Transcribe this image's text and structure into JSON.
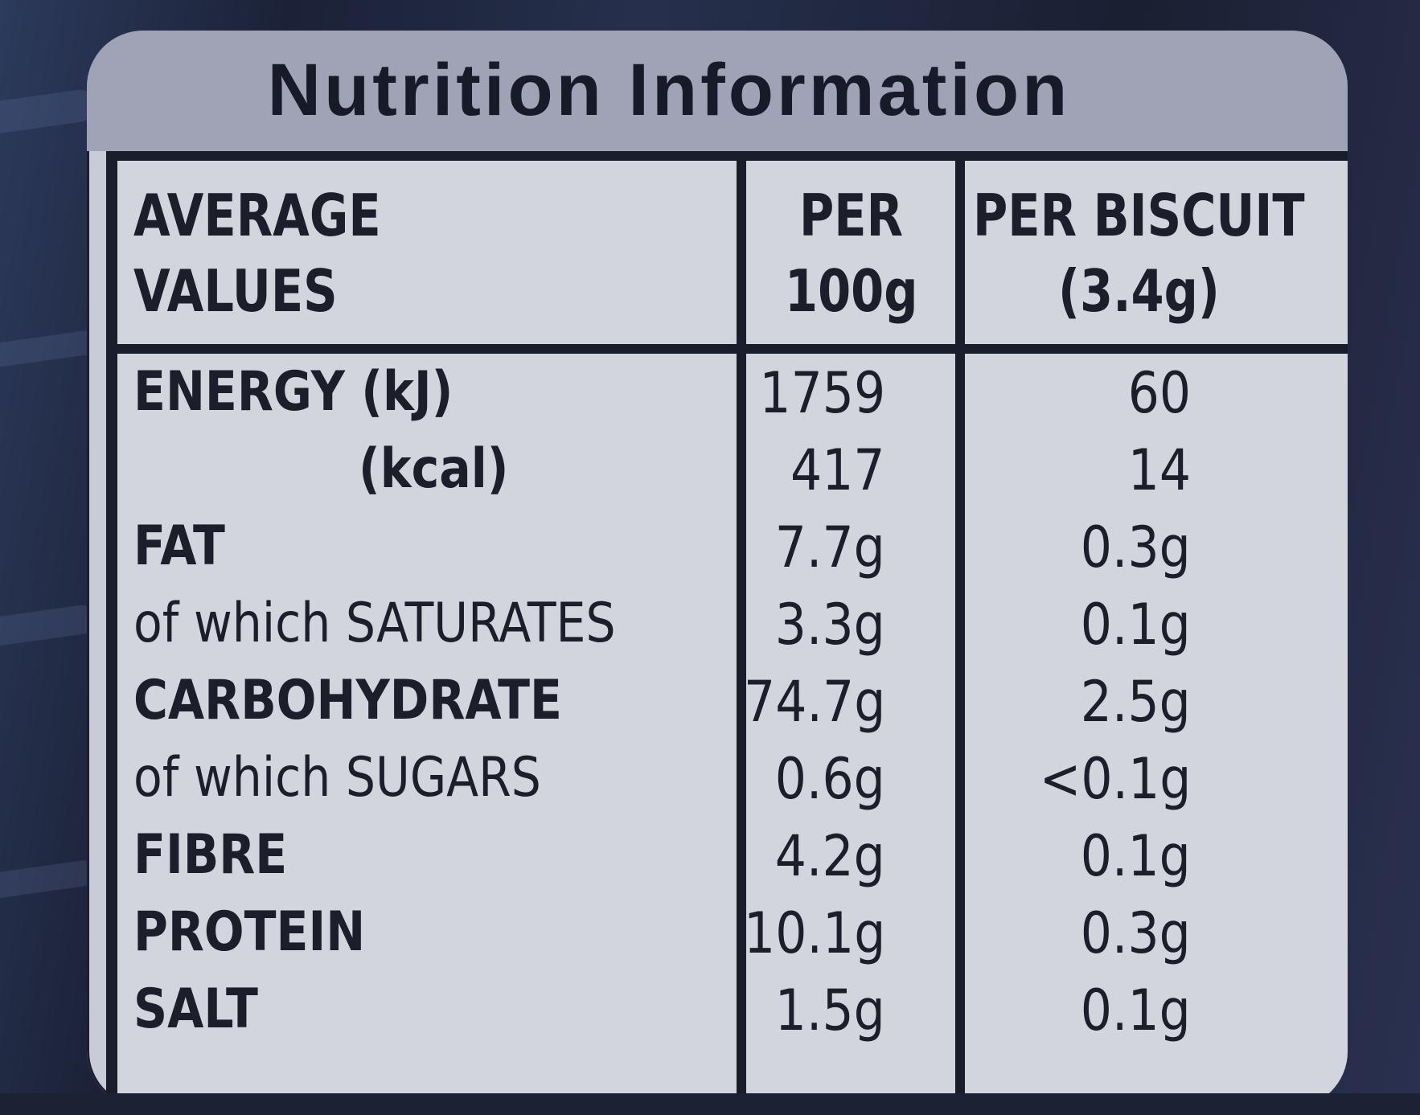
{
  "label": {
    "title": "Nutrition Information",
    "header": {
      "col1_line1": "AVERAGE",
      "col1_line2": "VALUES",
      "col2_line1": "PER",
      "col2_line2": "100g",
      "col3_line1": "PER BISCUIT",
      "col3_line2": "(3.4g)"
    },
    "rows": [
      {
        "name": "ENERGY (kJ)",
        "per100": "1759",
        "perBiscuit": "60"
      },
      {
        "name": "(kcal)",
        "per100": "417",
        "perBiscuit": "14"
      },
      {
        "name": "FAT",
        "per100": "7.7g",
        "perBiscuit": "0.3g"
      },
      {
        "name": "of which SATURATES",
        "per100": "3.3g",
        "perBiscuit": "0.1g"
      },
      {
        "name": "CARBOHYDRATE",
        "per100": "74.7g",
        "perBiscuit": "2.5g"
      },
      {
        "name": "of which SUGARS",
        "per100": "0.6g",
        "perBiscuit": "<0.1g"
      },
      {
        "name": "FIBRE",
        "per100": "4.2g",
        "perBiscuit": "0.1g"
      },
      {
        "name": "PROTEIN",
        "per100": "10.1g",
        "perBiscuit": "0.3g"
      },
      {
        "name": "SALT",
        "per100": "1.5g",
        "perBiscuit": "0.1g"
      }
    ]
  },
  "colors": {
    "packaging": "#232a40",
    "label_background": "#c9cbd6",
    "title_band": "#9fa3b5",
    "ink": "#1a1d2c"
  }
}
